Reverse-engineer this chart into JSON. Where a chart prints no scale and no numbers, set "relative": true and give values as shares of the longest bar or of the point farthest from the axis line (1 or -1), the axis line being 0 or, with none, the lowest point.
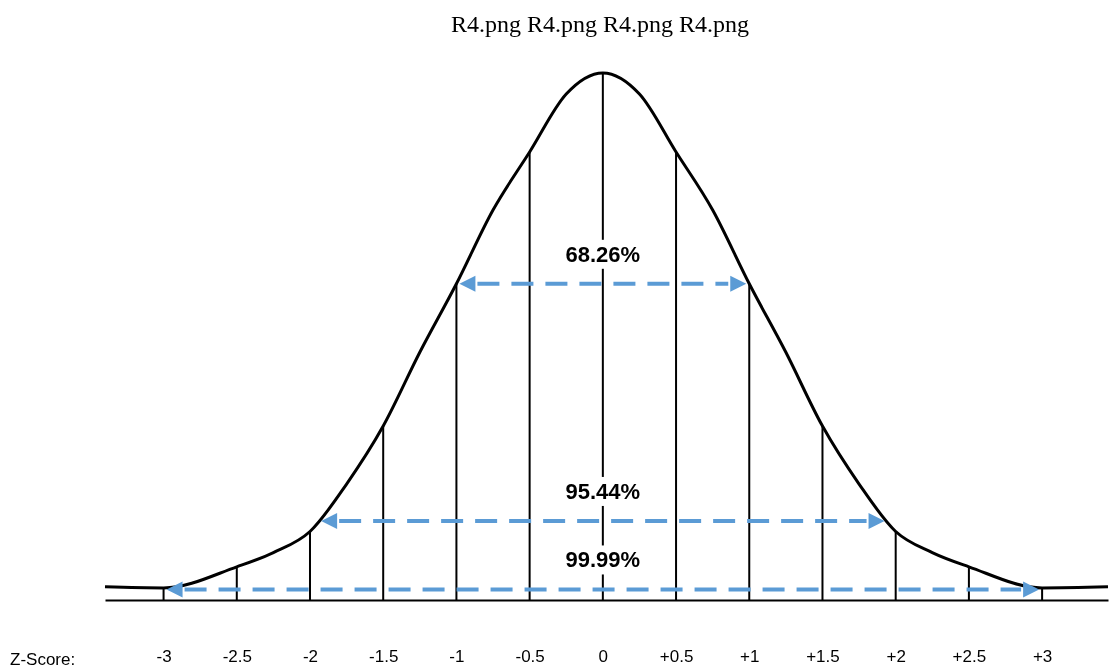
{
  "chart_data": {
    "type": "line",
    "title": "R4.png R4.png R4.png R4.png",
    "xlabel": "Z-Score:",
    "relative": true,
    "marker": "none",
    "line_style": "solid",
    "xlim": [
      -3.4,
      3.45
    ],
    "xticks": [
      -3,
      -2.5,
      -2,
      -1.5,
      -1,
      -0.5,
      0,
      {
        "value": 0.5,
        "label": "+0.5"
      },
      {
        "value": 1,
        "label": "+1"
      },
      {
        "value": 1.5,
        "label": "+1.5"
      },
      {
        "value": 2,
        "label": "+2"
      },
      {
        "value": 2.5,
        "label": "+2.5"
      },
      {
        "value": 3,
        "label": "+3"
      }
    ],
    "x": [
      -3.4,
      -3,
      -2.5,
      -2.25,
      -2,
      -1.75,
      -1.5,
      -1.25,
      -1,
      -0.75,
      -0.5,
      -0.25,
      0,
      0.25,
      0.5,
      0.75,
      1,
      1.25,
      1.5,
      1.75,
      2,
      2.25,
      2.5,
      3,
      3.45
    ],
    "series": [
      {
        "color": "#000000",
        "values": [
          0.025,
          0.023,
          0.063,
          0.09,
          0.13,
          0.22,
          0.33,
          0.47,
          0.6,
          0.74,
          0.85,
          0.96,
          1,
          0.96,
          0.85,
          0.74,
          0.6,
          0.47,
          0.33,
          0.22,
          0.13,
          0.09,
          0.063,
          0.023,
          0.025
        ]
      },
      {
        "type": "bar",
        "color": "#000000",
        "x": [
          -3,
          -2.5,
          -2,
          -1.5,
          -1,
          -0.5,
          0,
          0.5,
          1,
          1.5,
          2,
          2.5,
          3
        ],
        "values": [
          0.023,
          0.063,
          0.13,
          0.33,
          0.6,
          0.85,
          1,
          0.85,
          0.6,
          0.33,
          0.13,
          0.063,
          0.023
        ]
      }
    ],
    "annotations": [
      {
        "text": "68.26%",
        "y": 0.6
      },
      {
        "text": "95.44%",
        "y": 0.15
      },
      {
        "text": "99.99%",
        "y": 0.02
      }
    ]
  }
}
